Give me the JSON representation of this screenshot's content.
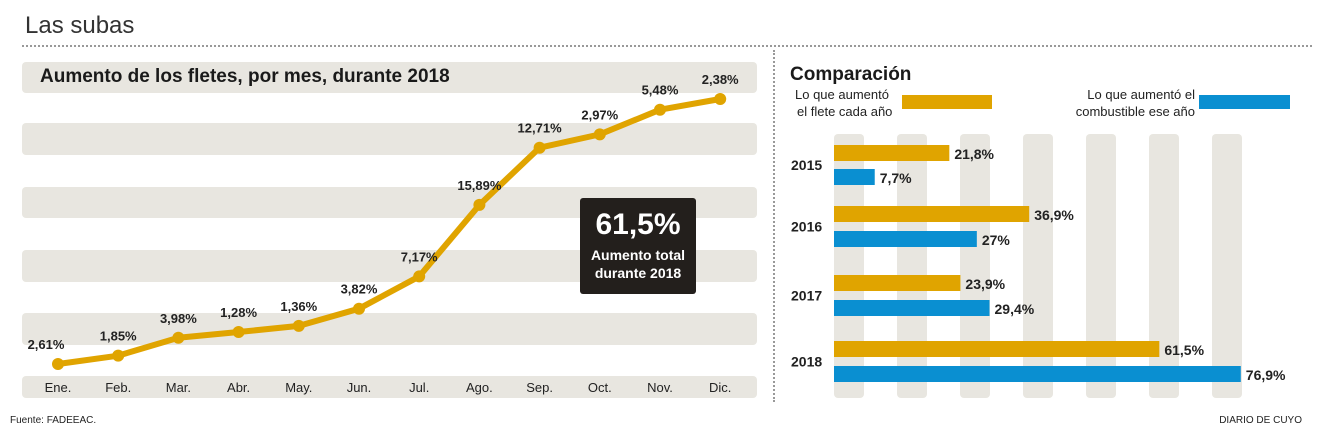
{
  "header": {
    "title": "Las subas"
  },
  "footer": {
    "source": "Fuente: FADEEAC.",
    "credit": "DIARIO DE CUYO"
  },
  "colors": {
    "flete": "#E0A400",
    "combustible": "#0A8FD1",
    "band": "#E8E6E0",
    "callout_bg": "#231F1C"
  },
  "callout": {
    "value": "61,5%",
    "line1": "Aumento total",
    "line2": "durante 2018"
  },
  "chart_data": [
    {
      "type": "line",
      "title": "Aumento de los fletes, por mes, durante 2018",
      "categories": [
        "Ene.",
        "Feb.",
        "Mar.",
        "Abr.",
        "May.",
        "Jun.",
        "Jul.",
        "Ago.",
        "Sep.",
        "Oct.",
        "Nov.",
        "Dic."
      ],
      "values": [
        2.61,
        1.85,
        3.98,
        1.28,
        1.36,
        3.82,
        7.17,
        15.89,
        12.71,
        2.97,
        5.48,
        2.38
      ],
      "labels": [
        "2,61%",
        "1,85%",
        "3,98%",
        "1,28%",
        "1,36%",
        "3,82%",
        "7,17%",
        "15,89%",
        "12,71%",
        "2,97%",
        "5,48%",
        "2,38%"
      ],
      "line_plots": "cumulative",
      "color": "#E0A400"
    },
    {
      "type": "bar",
      "orientation": "horizontal",
      "title": "Comparación",
      "categories": [
        "2015",
        "2016",
        "2017",
        "2018"
      ],
      "series": [
        {
          "name": "Lo que aumentó el flete cada año",
          "values": [
            21.8,
            36.9,
            23.9,
            61.5
          ],
          "labels": [
            "21,8%",
            "36,9%",
            "23,9%",
            "61,5%"
          ],
          "color": "#E0A400"
        },
        {
          "name": "Lo que aumentó el combustible ese año",
          "values": [
            7.7,
            27,
            29.4,
            76.9
          ],
          "labels": [
            "7,7%",
            "27%",
            "29,4%",
            "76,9%"
          ],
          "color": "#0A8FD1"
        }
      ],
      "legend_lines": [
        [
          "Lo que aumentó",
          "el flete cada año"
        ],
        [
          "Lo que aumentó el",
          "combustible ese año"
        ]
      ]
    }
  ]
}
